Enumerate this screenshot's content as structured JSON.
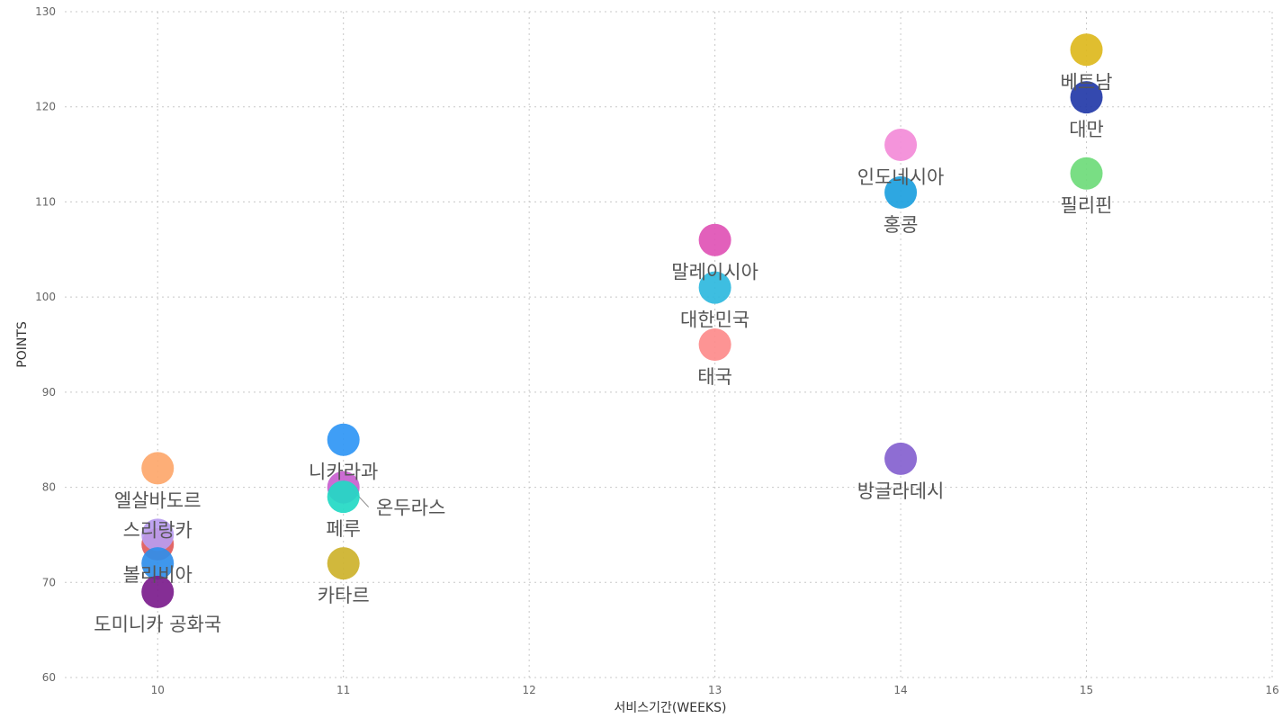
{
  "chart_data": {
    "type": "scatter",
    "xlabel": "서비스기간(WEEKS)",
    "ylabel": "POINTS",
    "xlim": [
      9.5,
      16
    ],
    "ylim": [
      60,
      130
    ],
    "x_ticks": [
      10,
      11,
      12,
      13,
      14,
      15,
      16
    ],
    "y_ticks": [
      60,
      70,
      80,
      90,
      100,
      110,
      120,
      130
    ],
    "grid": true,
    "points": [
      {
        "label": "베트남",
        "x": 15,
        "y": 126,
        "color": "#DDB81D"
      },
      {
        "label": "대만",
        "x": 15,
        "y": 121,
        "color": "#233AA8"
      },
      {
        "label": "필리핀",
        "x": 15,
        "y": 113,
        "color": "#6EDB79"
      },
      {
        "label": "인도네시아",
        "x": 14,
        "y": 116,
        "color": "#F38BD8"
      },
      {
        "label": "홍콩",
        "x": 14,
        "y": 111,
        "color": "#1C9FDE"
      },
      {
        "label": "방글라데시",
        "x": 14,
        "y": 83,
        "color": "#8461CF"
      },
      {
        "label": "말레이시아",
        "x": 13,
        "y": 106,
        "color": "#E052B5"
      },
      {
        "label": "대한민국",
        "x": 13,
        "y": 101,
        "color": "#2EB8DE"
      },
      {
        "label": "태국",
        "x": 13,
        "y": 95,
        "color": "#FD8B8B"
      },
      {
        "label": "니카라과",
        "x": 11,
        "y": 85,
        "color": "#2F96F5"
      },
      {
        "label": "온두라스",
        "x": 11,
        "y": 80,
        "color": "#C85FCF"
      },
      {
        "label": "페루",
        "x": 11,
        "y": 79,
        "color": "#22D9C4"
      },
      {
        "label": "카타르",
        "x": 11,
        "y": 72,
        "color": "#CDB22B"
      },
      {
        "label": "엘살바도르",
        "x": 10,
        "y": 82,
        "color": "#FDA76B"
      },
      {
        "label": "",
        "x": 10,
        "y": 74,
        "color": "#E05A5A"
      },
      {
        "label": "스리랑카",
        "x": 10,
        "y": 75,
        "color": "#B89CF0"
      },
      {
        "label": "볼리비아",
        "x": 10,
        "y": 72,
        "color": "#2F8EEA"
      },
      {
        "label": "도미니카 공화국",
        "x": 10,
        "y": 69,
        "color": "#7B1C8C"
      }
    ]
  }
}
